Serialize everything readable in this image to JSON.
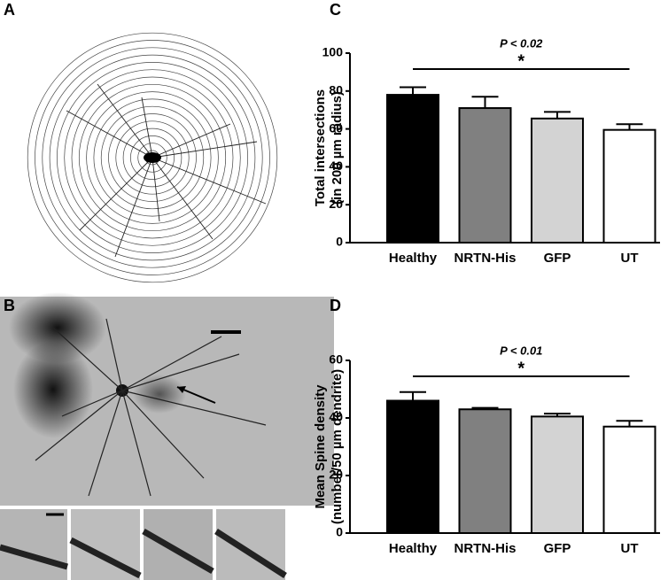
{
  "panel_labels": [
    "A",
    "B",
    "C",
    "D"
  ],
  "chart_data": [
    {
      "type": "bar",
      "categories": [
        "Healthy",
        "NRTN-His",
        "GFP",
        "UT"
      ],
      "values": [
        78,
        71,
        65.5,
        59.5
      ],
      "errors": [
        4,
        6,
        3.5,
        3
      ],
      "colors": [
        "#000000",
        "#808080",
        "#d3d3d3",
        "#ffffff"
      ],
      "ylabel": [
        "Total intersections",
        "(in 200 µm radius)"
      ],
      "ylim": [
        0,
        100
      ],
      "yticks": [
        0,
        20,
        40,
        60,
        80,
        100
      ],
      "annotation": "P < 0.02",
      "significance": "*"
    },
    {
      "type": "bar",
      "categories": [
        "Healthy",
        "NRTN-His",
        "GFP",
        "UT"
      ],
      "values": [
        46,
        43,
        40.5,
        37
      ],
      "errors": [
        3,
        0.5,
        1,
        2
      ],
      "colors": [
        "#000000",
        "#808080",
        "#d3d3d3",
        "#ffffff"
      ],
      "ylabel": [
        "Mean Spine density",
        "(number/50 µm dendrite)"
      ],
      "ylim": [
        0,
        60
      ],
      "yticks": [
        0,
        20,
        40,
        60
      ],
      "annotation": "P < 0.01",
      "significance": "*"
    }
  ]
}
